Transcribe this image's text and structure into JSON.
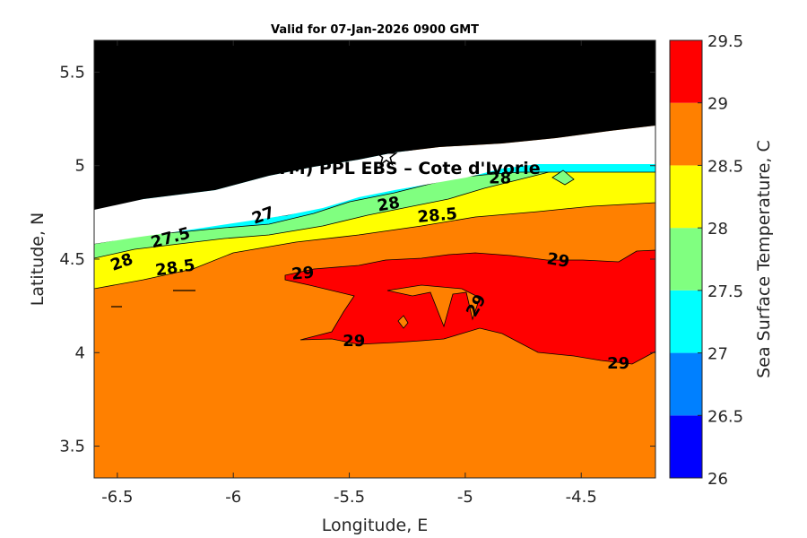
{
  "chart_data": {
    "type": "contour",
    "title": "Valid for 07-Jan-2026 0900 GMT",
    "xlabel": "Longitude, E",
    "ylabel": "Latitude, N",
    "xlim": [
      -6.6,
      -4.18
    ],
    "ylim": [
      3.33,
      5.67
    ],
    "xticks": [
      "-6.5",
      "-6",
      "-5.5",
      "-5",
      "-4.5"
    ],
    "xtick_values": [
      -6.5,
      -6,
      -5.5,
      -5,
      -4.5
    ],
    "yticks": [
      "5.5",
      "5",
      "4.5",
      "4",
      "3.5"
    ],
    "ytick_values": [
      5.5,
      5,
      4.5,
      4,
      3.5
    ],
    "overlay_text": "A (ONHYM) PPL EBS  – Cote d'Ivorie",
    "marker": {
      "symbol": "star",
      "lon": -5.34,
      "lat": 5.05
    },
    "colorbar": {
      "label": "Sea Surface Temperature, C",
      "ticks": [
        "29.5",
        "29",
        "28.5",
        "28",
        "27.5",
        "27",
        "26.5",
        "26"
      ],
      "levels": [
        26,
        26.5,
        27,
        27.5,
        28,
        28.5,
        29,
        29.5
      ],
      "colors": [
        "#0000ff",
        "#0080ff",
        "#00ffff",
        "#80ff80",
        "#ffff00",
        "#ff8000",
        "#ff0000"
      ]
    },
    "land_color": "#000000",
    "contour_labels": [
      {
        "text": "29",
        "lon": -5.7,
        "lat": 4.42,
        "angle": -5
      },
      {
        "text": "29",
        "lon": -5.48,
        "lat": 4.06,
        "angle": 0
      },
      {
        "text": "29",
        "lon": -4.95,
        "lat": 4.25,
        "angle": -60
      },
      {
        "text": "29",
        "lon": -4.6,
        "lat": 4.49,
        "angle": 10
      },
      {
        "text": "29",
        "lon": -4.34,
        "lat": 3.94,
        "angle": 0
      },
      {
        "text": "28.5",
        "lon": -6.25,
        "lat": 4.45,
        "angle": -8
      },
      {
        "text": "28.5",
        "lon": -5.12,
        "lat": 4.73,
        "angle": -5
      },
      {
        "text": "28",
        "lon": -6.48,
        "lat": 4.48,
        "angle": -20
      },
      {
        "text": "28",
        "lon": -5.33,
        "lat": 4.79,
        "angle": -10
      },
      {
        "text": "28",
        "lon": -4.85,
        "lat": 4.93,
        "angle": 0
      },
      {
        "text": "27.5",
        "lon": -6.27,
        "lat": 4.61,
        "angle": -15
      },
      {
        "text": "27",
        "lon": -5.87,
        "lat": 4.73,
        "angle": -20
      }
    ]
  }
}
